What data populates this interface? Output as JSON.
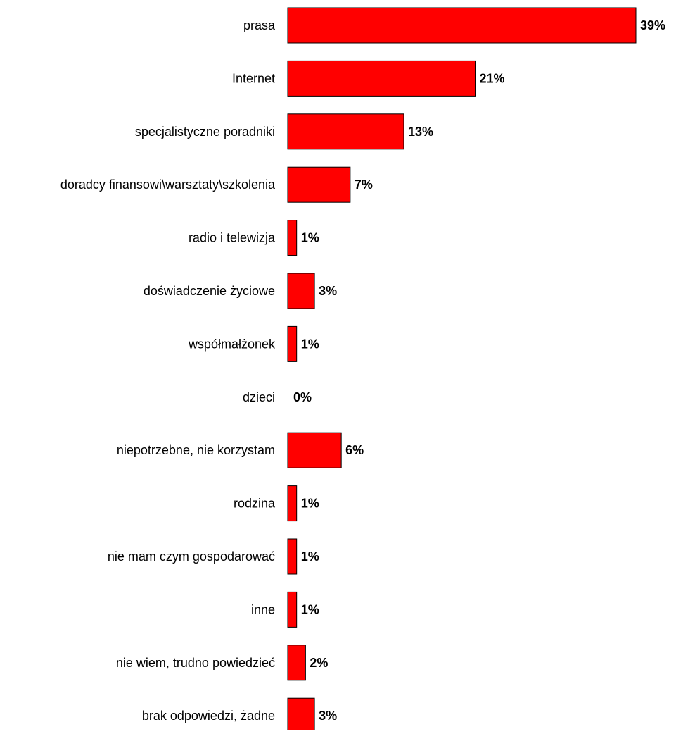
{
  "chart_data": {
    "type": "bar",
    "orientation": "horizontal",
    "categories": [
      "prasa",
      "Internet",
      "specjalistyczne poradniki",
      "doradcy finansowi\\warsztaty\\szkolenia",
      "radio i telewizja",
      "doświadczenie życiowe",
      "współmałżonek",
      "dzieci",
      "niepotrzebne, nie korzystam",
      "rodzina",
      "nie mam czym gospodarować",
      "inne",
      "nie wiem, trudno powiedzieć",
      "brak odpowiedzi, żadne"
    ],
    "values": [
      39,
      21,
      13,
      7,
      1,
      3,
      1,
      0,
      6,
      1,
      1,
      1,
      2,
      3
    ],
    "value_labels": [
      "39%",
      "21%",
      "13%",
      "7%",
      "1%",
      "3%",
      "1%",
      "0%",
      "6%",
      "1%",
      "1%",
      "1%",
      "2%",
      "3%"
    ],
    "unit": "%",
    "title": "",
    "xlabel": "",
    "ylabel": "",
    "xlim": [
      0,
      39
    ],
    "grid": false,
    "legend": "none",
    "colors": {
      "bar_fill": "#ff0000",
      "bar_stroke": "#000000",
      "text": "#000000",
      "background": "#ffffff"
    }
  }
}
